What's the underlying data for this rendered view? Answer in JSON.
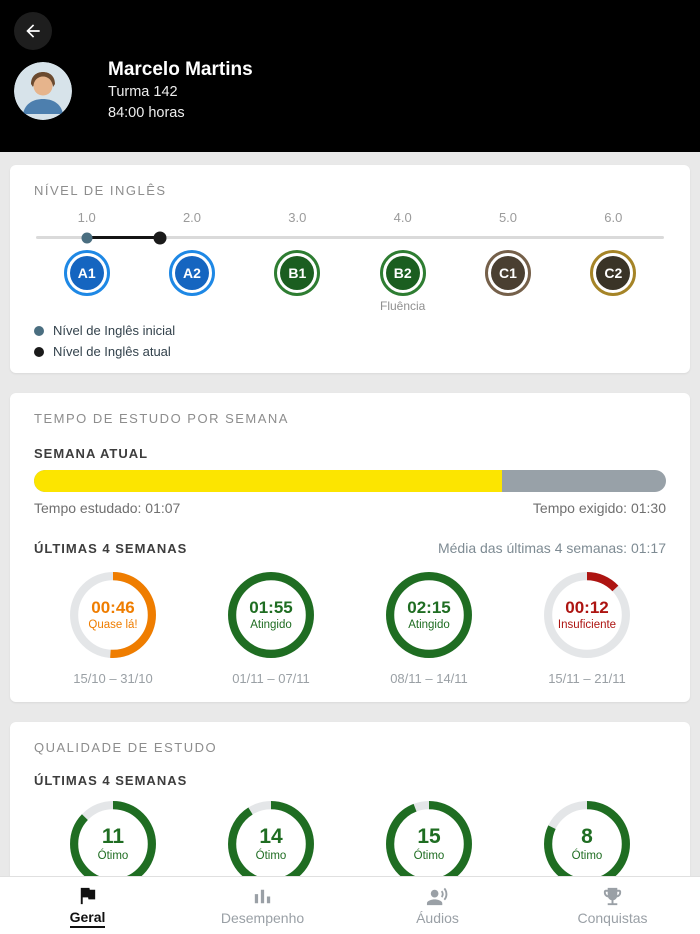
{
  "header": {
    "name": "Marcelo Martins",
    "class_label": "Turma 142",
    "hours_label": "84:00 horas"
  },
  "level_card": {
    "title": "NÍVEL DE INGLÊS",
    "ticks": [
      "1.0",
      "2.0",
      "3.0",
      "4.0",
      "5.0",
      "6.0"
    ],
    "levels": [
      {
        "label": "A1",
        "fill": "#1565c0",
        "ring": "#1e88e5",
        "sublabel": ""
      },
      {
        "label": "A2",
        "fill": "#1565c0",
        "ring": "#1e88e5",
        "sublabel": ""
      },
      {
        "label": "B1",
        "fill": "#1b5e20",
        "ring": "#2e7d32",
        "sublabel": ""
      },
      {
        "label": "B2",
        "fill": "#1b5e20",
        "ring": "#2e7d32",
        "sublabel": "Fluência"
      },
      {
        "label": "C1",
        "fill": "#4a3f31",
        "ring": "#75604a",
        "sublabel": ""
      },
      {
        "label": "C2",
        "fill": "#3a3427",
        "ring": "#a58427",
        "sublabel": ""
      }
    ],
    "initial_value": 1.0,
    "current_value": 1.7,
    "legend": [
      {
        "label": "Nível de Inglês inicial",
        "color": "#4a6e80"
      },
      {
        "label": "Nível de Inglês atual",
        "color": "#1a1a1a"
      }
    ]
  },
  "study_time_card": {
    "title": "TEMPO DE ESTUDO POR SEMANA",
    "current_week": {
      "label": "SEMANA ATUAL",
      "progress_pct": 74,
      "bar_color": "#fce500",
      "studied_label": "Tempo estudado: 01:07",
      "required_label": "Tempo exigido: 01:30"
    },
    "history": {
      "label": "ÚLTIMAS 4 SEMANAS",
      "average_label": "Média das últimas 4 semanas: 01:17",
      "weeks": [
        {
          "time": "00:46",
          "status": "Quase lá!",
          "dates": "15/10 – 31/10",
          "pct": 51,
          "color": "#ef7d00"
        },
        {
          "time": "01:55",
          "status": "Atingido",
          "dates": "01/11 – 07/11",
          "pct": 100,
          "color": "#1f6d22"
        },
        {
          "time": "02:15",
          "status": "Atingido",
          "dates": "08/11 – 14/11",
          "pct": 100,
          "color": "#1f6d22"
        },
        {
          "time": "00:12",
          "status": "Insuficiente",
          "dates": "15/11 – 21/11",
          "pct": 13,
          "color": "#ad1411"
        }
      ]
    }
  },
  "quality_card": {
    "title": "QUALIDADE DE ESTUDO",
    "label": "ÚLTIMAS 4 SEMANAS",
    "weeks": [
      {
        "value": "11",
        "status": "Ótimo",
        "pct": 87,
        "color": "#1f6d22"
      },
      {
        "value": "14",
        "status": "Ótimo",
        "pct": 91,
        "color": "#1f6d22"
      },
      {
        "value": "15",
        "status": "Ótimo",
        "pct": 94,
        "color": "#1f6d22"
      },
      {
        "value": "8",
        "status": "Ótimo",
        "pct": 82,
        "color": "#1f6d22"
      }
    ]
  },
  "nav": {
    "items": [
      {
        "label": "Geral",
        "icon": "flag-icon",
        "active": true
      },
      {
        "label": "Desempenho",
        "icon": "bar-chart-icon",
        "active": false
      },
      {
        "label": "Áudios",
        "icon": "voice-icon",
        "active": false
      },
      {
        "label": "Conquistas",
        "icon": "trophy-icon",
        "active": false
      }
    ]
  }
}
